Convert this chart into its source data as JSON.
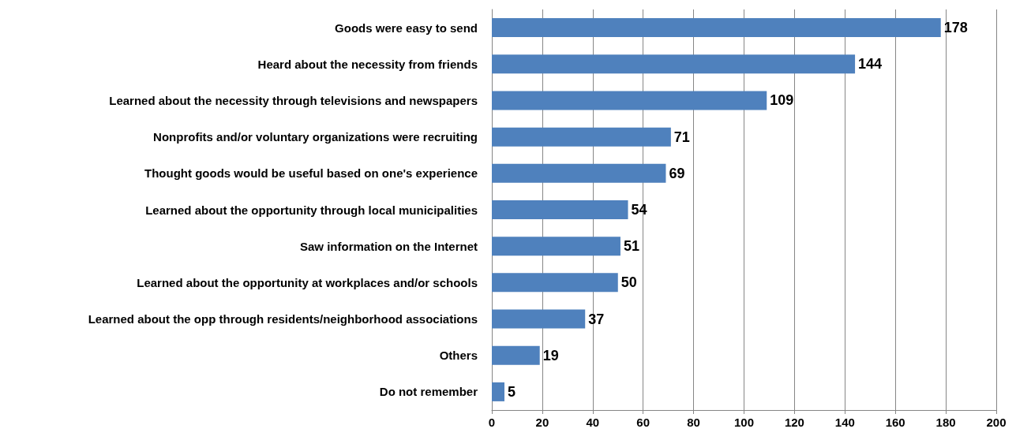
{
  "chart_data": {
    "type": "bar",
    "orientation": "horizontal",
    "categories": [
      "Goods were easy to send",
      "Heard about the necessity from friends",
      "Learned about the necessity through televisions and newspapers",
      "Nonprofits and/or voluntary organizations were recruiting",
      "Thought goods would be useful based on one's experience",
      "Learned about the opportunity through local municipalities",
      "Saw information on the Internet",
      "Learned about the opportunity at workplaces and/or schools",
      "Learned about the opp through residents/neighborhood associations",
      "Others",
      "Do not remember"
    ],
    "values": [
      178,
      144,
      109,
      71,
      69,
      54,
      51,
      50,
      37,
      19,
      5
    ],
    "color": "#4f81bd",
    "data_labels": true,
    "xlim": [
      0,
      200
    ],
    "xticks": [
      0,
      20,
      40,
      60,
      80,
      100,
      120,
      140,
      160,
      180,
      200
    ],
    "grid": "x"
  }
}
